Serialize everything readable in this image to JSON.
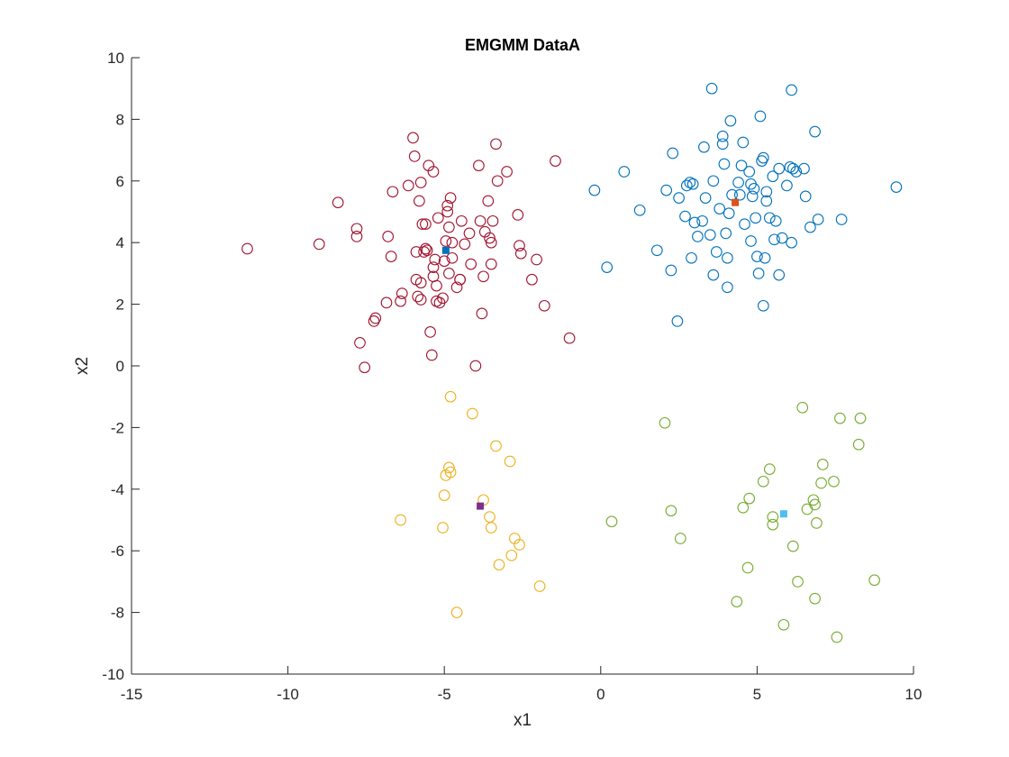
{
  "chart_data": {
    "type": "scatter",
    "title": "EMGMM DataA",
    "xlabel": "x1",
    "ylabel": "x2",
    "xlim": [
      -15,
      10
    ],
    "ylim": [
      -10,
      10
    ],
    "xticks": [
      -15,
      -10,
      -5,
      0,
      5,
      10
    ],
    "yticks": [
      -10,
      -8,
      -6,
      -4,
      -2,
      0,
      2,
      4,
      6,
      8,
      10
    ],
    "grid": false,
    "legend": "none",
    "series": [
      {
        "color": "#a2142f",
        "marker": "circle-open",
        "points": [
          [
            -11.3,
            3.8
          ],
          [
            -9.0,
            3.95
          ],
          [
            -8.4,
            5.3
          ],
          [
            -7.8,
            4.2
          ],
          [
            -7.8,
            4.45
          ],
          [
            -7.7,
            0.75
          ],
          [
            -7.55,
            -0.05
          ],
          [
            -7.25,
            1.45
          ],
          [
            -7.2,
            1.55
          ],
          [
            -6.85,
            2.05
          ],
          [
            -6.8,
            4.2
          ],
          [
            -6.7,
            3.55
          ],
          [
            -6.65,
            5.65
          ],
          [
            -6.4,
            2.1
          ],
          [
            -6.35,
            2.35
          ],
          [
            -6.15,
            5.85
          ],
          [
            -6.0,
            7.4
          ],
          [
            -5.95,
            6.8
          ],
          [
            -5.9,
            3.7
          ],
          [
            -5.9,
            2.8
          ],
          [
            -5.85,
            2.25
          ],
          [
            -5.8,
            5.35
          ],
          [
            -5.75,
            2.7
          ],
          [
            -5.75,
            5.95
          ],
          [
            -5.75,
            2.15
          ],
          [
            -5.7,
            4.6
          ],
          [
            -5.6,
            4.6
          ],
          [
            -5.6,
            3.8
          ],
          [
            -5.55,
            3.75
          ],
          [
            -5.5,
            6.5
          ],
          [
            -5.45,
            1.1
          ],
          [
            -5.4,
            0.35
          ],
          [
            -5.35,
            6.3
          ],
          [
            -5.35,
            2.9
          ],
          [
            -5.35,
            3.2
          ],
          [
            -5.3,
            3.45
          ],
          [
            -5.25,
            2.6
          ],
          [
            -5.25,
            2.1
          ],
          [
            -5.2,
            4.8
          ],
          [
            -5.15,
            2.05
          ],
          [
            -5.05,
            2.2
          ],
          [
            -5.0,
            3.4
          ],
          [
            -4.95,
            4.05
          ],
          [
            -4.9,
            5.2
          ],
          [
            -4.9,
            5.0
          ],
          [
            -4.85,
            3.0
          ],
          [
            -4.85,
            4.5
          ],
          [
            -4.8,
            5.45
          ],
          [
            -4.75,
            3.5
          ],
          [
            -4.75,
            4.0
          ],
          [
            -4.6,
            2.55
          ],
          [
            -4.5,
            2.8
          ],
          [
            -4.45,
            4.7
          ],
          [
            -4.35,
            3.95
          ],
          [
            -4.2,
            4.3
          ],
          [
            -4.15,
            3.3
          ],
          [
            -4.0,
            0.0
          ],
          [
            -3.9,
            6.5
          ],
          [
            -3.85,
            4.7
          ],
          [
            -3.8,
            1.7
          ],
          [
            -3.75,
            2.9
          ],
          [
            -3.7,
            4.35
          ],
          [
            -3.6,
            5.35
          ],
          [
            -3.55,
            4.15
          ],
          [
            -3.5,
            4.0
          ],
          [
            -3.5,
            3.3
          ],
          [
            -3.45,
            4.7
          ],
          [
            -3.35,
            7.2
          ],
          [
            -3.3,
            6.0
          ],
          [
            -3.0,
            6.3
          ],
          [
            -2.65,
            4.9
          ],
          [
            -2.6,
            3.9
          ],
          [
            -2.55,
            3.65
          ],
          [
            -2.2,
            2.8
          ],
          [
            -2.05,
            3.45
          ],
          [
            -1.8,
            1.95
          ],
          [
            -1.45,
            6.65
          ],
          [
            -1.0,
            0.9
          ],
          [
            -4.5,
            2.8
          ],
          [
            -5.65,
            3.7
          ]
        ]
      },
      {
        "color": "#0072bd",
        "marker": "circle-open",
        "points": [
          [
            -0.2,
            5.7
          ],
          [
            0.2,
            3.2
          ],
          [
            0.75,
            6.3
          ],
          [
            1.25,
            5.05
          ],
          [
            1.8,
            3.75
          ],
          [
            2.1,
            5.7
          ],
          [
            2.25,
            3.1
          ],
          [
            2.3,
            6.9
          ],
          [
            2.45,
            1.45
          ],
          [
            2.5,
            5.45
          ],
          [
            2.7,
            4.85
          ],
          [
            2.75,
            5.85
          ],
          [
            2.85,
            5.95
          ],
          [
            2.9,
            3.5
          ],
          [
            2.95,
            5.9
          ],
          [
            3.0,
            4.65
          ],
          [
            3.1,
            4.2
          ],
          [
            3.25,
            4.7
          ],
          [
            3.3,
            7.1
          ],
          [
            3.35,
            5.45
          ],
          [
            3.5,
            4.25
          ],
          [
            3.55,
            9.0
          ],
          [
            3.6,
            6.0
          ],
          [
            3.6,
            2.95
          ],
          [
            3.7,
            3.7
          ],
          [
            3.8,
            5.1
          ],
          [
            3.9,
            7.45
          ],
          [
            3.9,
            7.2
          ],
          [
            3.95,
            6.55
          ],
          [
            4.0,
            4.3
          ],
          [
            4.05,
            3.5
          ],
          [
            4.05,
            2.55
          ],
          [
            4.1,
            4.95
          ],
          [
            4.15,
            7.95
          ],
          [
            4.2,
            5.55
          ],
          [
            4.4,
            5.95
          ],
          [
            4.45,
            5.55
          ],
          [
            4.5,
            6.5
          ],
          [
            4.55,
            7.25
          ],
          [
            4.6,
            4.6
          ],
          [
            4.75,
            6.3
          ],
          [
            4.8,
            4.05
          ],
          [
            4.8,
            5.9
          ],
          [
            4.85,
            5.5
          ],
          [
            4.9,
            5.75
          ],
          [
            4.95,
            4.8
          ],
          [
            5.0,
            3.55
          ],
          [
            5.05,
            3.0
          ],
          [
            5.1,
            8.1
          ],
          [
            5.15,
            6.65
          ],
          [
            5.2,
            1.95
          ],
          [
            5.2,
            6.75
          ],
          [
            5.25,
            3.5
          ],
          [
            5.3,
            5.65
          ],
          [
            5.3,
            5.35
          ],
          [
            5.4,
            4.8
          ],
          [
            5.5,
            6.15
          ],
          [
            5.55,
            4.1
          ],
          [
            5.6,
            4.7
          ],
          [
            5.7,
            6.4
          ],
          [
            5.7,
            2.95
          ],
          [
            5.8,
            4.15
          ],
          [
            5.95,
            5.85
          ],
          [
            6.05,
            6.45
          ],
          [
            6.1,
            4.0
          ],
          [
            6.1,
            8.95
          ],
          [
            6.25,
            6.3
          ],
          [
            6.5,
            6.4
          ],
          [
            6.55,
            5.5
          ],
          [
            6.7,
            4.5
          ],
          [
            6.85,
            7.6
          ],
          [
            6.95,
            4.75
          ],
          [
            7.7,
            4.75
          ],
          [
            9.45,
            5.8
          ],
          [
            6.15,
            6.4
          ]
        ]
      },
      {
        "color": "#edb120",
        "marker": "circle-open",
        "points": [
          [
            -6.4,
            -5.0
          ],
          [
            -5.05,
            -5.25
          ],
          [
            -5.0,
            -4.2
          ],
          [
            -4.95,
            -3.55
          ],
          [
            -4.85,
            -3.3
          ],
          [
            -4.8,
            -3.45
          ],
          [
            -4.8,
            -1.0
          ],
          [
            -4.6,
            -8.0
          ],
          [
            -4.1,
            -1.55
          ],
          [
            -3.75,
            -4.35
          ],
          [
            -3.55,
            -4.9
          ],
          [
            -3.5,
            -5.25
          ],
          [
            -3.35,
            -2.6
          ],
          [
            -3.25,
            -6.45
          ],
          [
            -2.9,
            -3.1
          ],
          [
            -2.85,
            -6.15
          ],
          [
            -2.75,
            -5.6
          ],
          [
            -2.6,
            -5.8
          ],
          [
            -1.95,
            -7.15
          ]
        ]
      },
      {
        "color": "#77ac30",
        "marker": "circle-open",
        "points": [
          [
            0.35,
            -5.05
          ],
          [
            2.05,
            -1.85
          ],
          [
            2.25,
            -4.7
          ],
          [
            2.55,
            -5.6
          ],
          [
            4.35,
            -7.65
          ],
          [
            4.55,
            -4.6
          ],
          [
            4.7,
            -6.55
          ],
          [
            4.75,
            -4.3
          ],
          [
            5.2,
            -3.75
          ],
          [
            5.4,
            -3.35
          ],
          [
            5.5,
            -5.15
          ],
          [
            5.5,
            -4.9
          ],
          [
            5.85,
            -8.4
          ],
          [
            6.15,
            -5.85
          ],
          [
            6.3,
            -7.0
          ],
          [
            6.45,
            -1.35
          ],
          [
            6.6,
            -4.65
          ],
          [
            6.8,
            -4.35
          ],
          [
            6.85,
            -7.55
          ],
          [
            6.85,
            -4.5
          ],
          [
            6.9,
            -5.1
          ],
          [
            7.05,
            -3.8
          ],
          [
            7.1,
            -3.2
          ],
          [
            7.45,
            -3.75
          ],
          [
            7.55,
            -8.8
          ],
          [
            7.65,
            -1.7
          ],
          [
            8.25,
            -2.55
          ],
          [
            8.3,
            -1.7
          ],
          [
            8.75,
            -6.95
          ]
        ]
      }
    ],
    "centers": [
      {
        "color": "#0072bd",
        "x": -4.95,
        "y": 3.75
      },
      {
        "color": "#d95319",
        "x": 4.3,
        "y": 5.3
      },
      {
        "color": "#7e2f8e",
        "x": -3.85,
        "y": -4.55
      },
      {
        "color": "#4dbeee",
        "x": 5.85,
        "y": -4.8
      }
    ]
  }
}
